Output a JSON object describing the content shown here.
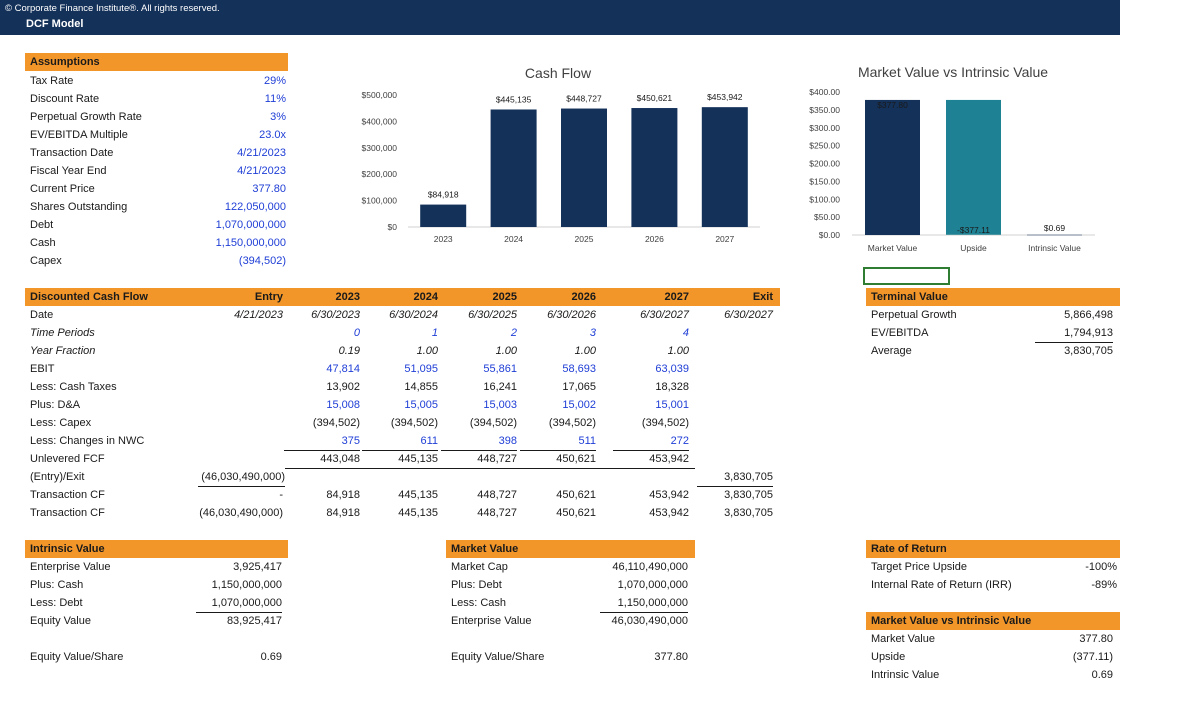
{
  "header": {
    "copyright": "© Corporate Finance Institute®. All rights reserved.",
    "title": "DCF Model"
  },
  "assumptions": {
    "title": "Assumptions",
    "rows": [
      {
        "label": "Tax Rate",
        "value": "29%"
      },
      {
        "label": "Discount Rate",
        "value": "11%"
      },
      {
        "label": "Perpetual Growth Rate",
        "value": "3%"
      },
      {
        "label": "EV/EBITDA Multiple",
        "value": "23.0x"
      },
      {
        "label": "Transaction Date",
        "value": "4/21/2023"
      },
      {
        "label": "Fiscal Year End",
        "value": "4/21/2023"
      },
      {
        "label": "Current Price",
        "value": "377.80"
      },
      {
        "label": "Shares Outstanding",
        "value": "122,050,000"
      },
      {
        "label": "Debt",
        "value": "1,070,000,000"
      },
      {
        "label": "Cash",
        "value": "1,150,000,000"
      },
      {
        "label": "Capex",
        "value": "(394,502)"
      }
    ]
  },
  "dcf": {
    "title": "Discounted Cash Flow",
    "headers": [
      "Entry",
      "2023",
      "2024",
      "2025",
      "2026",
      "2027",
      "Exit"
    ],
    "rows": [
      {
        "label": "Date",
        "cells": [
          "4/21/2023",
          "6/30/2023",
          "6/30/2024",
          "6/30/2025",
          "6/30/2026",
          "6/30/2027",
          "6/30/2027"
        ]
      },
      {
        "label": "Time Periods",
        "cells": [
          "",
          "0",
          "1",
          "2",
          "3",
          "4",
          ""
        ]
      },
      {
        "label": "Year Fraction",
        "cells": [
          "",
          "0.19",
          "1.00",
          "1.00",
          "1.00",
          "1.00",
          ""
        ]
      },
      {
        "label": "EBIT",
        "cells": [
          "",
          "47,814",
          "51,095",
          "55,861",
          "58,693",
          "63,039",
          ""
        ]
      },
      {
        "label": "Less: Cash Taxes",
        "cells": [
          "",
          "13,902",
          "14,855",
          "16,241",
          "17,065",
          "18,328",
          ""
        ]
      },
      {
        "label": "Plus: D&A",
        "cells": [
          "",
          "15,008",
          "15,005",
          "15,003",
          "15,002",
          "15,001",
          ""
        ]
      },
      {
        "label": "Less: Capex",
        "cells": [
          "",
          "(394,502)",
          "(394,502)",
          "(394,502)",
          "(394,502)",
          "(394,502)",
          ""
        ]
      },
      {
        "label": "Less: Changes in NWC",
        "cells": [
          "",
          "375",
          "611",
          "398",
          "511",
          "272",
          ""
        ]
      },
      {
        "label": "Unlevered FCF",
        "cells": [
          "",
          "443,048",
          "445,135",
          "448,727",
          "450,621",
          "453,942",
          ""
        ]
      },
      {
        "label": "(Entry)/Exit",
        "cells": [
          "(46,030,490,000)",
          "",
          "",
          "",
          "",
          "",
          "3,830,705"
        ]
      },
      {
        "label": "Transaction CF",
        "cells": [
          "-",
          "84,918",
          "445,135",
          "448,727",
          "450,621",
          "453,942",
          "3,830,705"
        ]
      },
      {
        "label": "Transaction CF",
        "cells": [
          "(46,030,490,000)",
          "84,918",
          "445,135",
          "448,727",
          "450,621",
          "453,942",
          "3,830,705"
        ]
      }
    ]
  },
  "terminal": {
    "title": "Terminal Value",
    "rows": [
      {
        "label": "Perpetual Growth",
        "value": "5,866,498"
      },
      {
        "label": "EV/EBITDA",
        "value": "1,794,913"
      },
      {
        "label": "Average",
        "value": "3,830,705"
      }
    ]
  },
  "intrinsic": {
    "title": "Intrinsic Value",
    "rows": [
      {
        "label": "Enterprise Value",
        "value": "3,925,417"
      },
      {
        "label": "Plus: Cash",
        "value": "1,150,000,000"
      },
      {
        "label": "Less: Debt",
        "value": "1,070,000,000"
      },
      {
        "label": "Equity Value",
        "value": "83,925,417"
      },
      {
        "label": "Equity Value/Share",
        "value": "0.69"
      }
    ]
  },
  "market": {
    "title": "Market Value",
    "rows": [
      {
        "label": "Market Cap",
        "value": "46,110,490,000"
      },
      {
        "label": "Plus: Debt",
        "value": "1,070,000,000"
      },
      {
        "label": "Less: Cash",
        "value": "1,150,000,000"
      },
      {
        "label": "Enterprise Value",
        "value": "46,030,490,000"
      },
      {
        "label": "Equity Value/Share",
        "value": "377.80"
      }
    ]
  },
  "ror": {
    "title": "Rate of Return",
    "rows": [
      {
        "label": "Target Price Upside",
        "value": "-100%"
      },
      {
        "label": "Internal Rate of Return (IRR)",
        "value": "-89%"
      }
    ]
  },
  "mvi": {
    "title": "Market Value vs Intrinsic Value",
    "rows": [
      {
        "label": "Market Value",
        "value": "377.80"
      },
      {
        "label": "Upside",
        "value": "(377.11)"
      },
      {
        "label": "Intrinsic Value",
        "value": "0.69"
      }
    ]
  },
  "colors": {
    "header_bar": "#14315a",
    "section_header": "#f2962a",
    "bar_navy": "#14315a",
    "bar_teal": "#1f8294",
    "input_blue": "#1f3ed6"
  },
  "chart_data": [
    {
      "type": "bar",
      "title": "Cash Flow",
      "categories": [
        "2023",
        "2024",
        "2025",
        "2026",
        "2027"
      ],
      "values": [
        84918,
        445135,
        448727,
        450621,
        453942
      ],
      "data_labels": [
        "$84,918",
        "$445,135",
        "$448,727",
        "$450,621",
        "$453,942"
      ],
      "yticks": [
        "$0",
        "$100,000",
        "$200,000",
        "$300,000",
        "$400,000",
        "$500,000"
      ],
      "ylim": [
        0,
        500000
      ],
      "grid": false,
      "color": "#14315a"
    },
    {
      "type": "bar",
      "subtype": "waterfall",
      "title": "Market Value vs Intrinsic Value",
      "categories": [
        "Market Value",
        "Upside",
        "Intrinsic Value"
      ],
      "values": [
        377.8,
        -377.11,
        0.69
      ],
      "data_labels": [
        "$377.80",
        "-$377.11",
        "$0.69"
      ],
      "yticks": [
        "$0.00",
        "$50.00",
        "$100.00",
        "$150.00",
        "$200.00",
        "$250.00",
        "$300.00",
        "$350.00",
        "$400.00"
      ],
      "ylim": [
        0,
        400
      ],
      "grid": false,
      "colors": [
        "#14315a",
        "#1f8294",
        "#14315a"
      ]
    }
  ]
}
